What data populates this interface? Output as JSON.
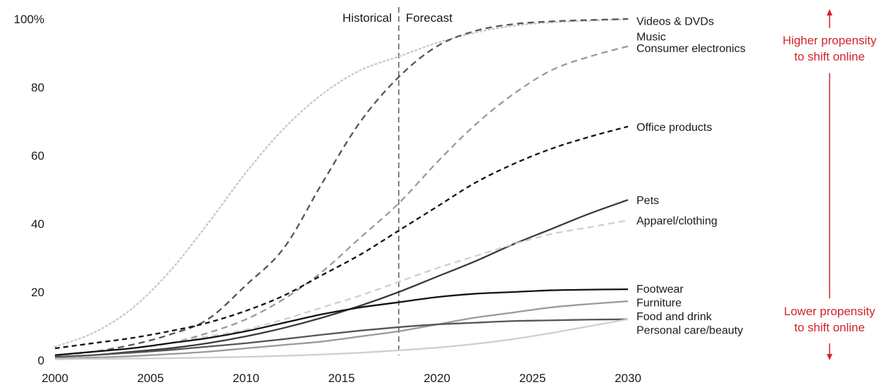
{
  "chart_data": {
    "type": "line",
    "title": "",
    "xlabel": "",
    "ylabel": "",
    "xlim": [
      2000,
      2030
    ],
    "ylim": [
      0,
      100
    ],
    "x_ticks": [
      "2000",
      "2005",
      "2010",
      "2015",
      "2020",
      "2025",
      "2030"
    ],
    "y_ticks": [
      "0",
      "20",
      "40",
      "60",
      "80",
      "100%"
    ],
    "grid": false,
    "divider": {
      "x": 2018,
      "left_label": "Historical",
      "right_label": "Forecast"
    },
    "propensity": {
      "high_line1": "Higher propensity",
      "high_line2": "to shift online",
      "low_line1": "Lower propensity",
      "low_line2": "to shift online",
      "color": "#d2232a"
    },
    "x": [
      2000,
      2002,
      2004,
      2006,
      2008,
      2010,
      2012,
      2014,
      2016,
      2018,
      2020,
      2022,
      2024,
      2026,
      2028,
      2030
    ],
    "series": [
      {
        "name": "Videos & DVDs",
        "color": "#c8c8c8",
        "dash": "dotted",
        "label_y": 99.5,
        "values": [
          4,
          8,
          15,
          26,
          40,
          55,
          68,
          78,
          85,
          89,
          93,
          96,
          98,
          99,
          99.5,
          100
        ]
      },
      {
        "name": "Music",
        "color": "#555555",
        "dash": "long",
        "label_y": 95,
        "values": [
          1.5,
          2.5,
          4.5,
          7.5,
          12,
          22,
          33,
          52,
          70,
          83,
          92,
          96.5,
          98.5,
          99.3,
          99.7,
          100
        ]
      },
      {
        "name": "Consumer electronics",
        "color": "#9a9a9a",
        "dash": "long",
        "label_y": 91.5,
        "values": [
          1.5,
          2.5,
          3.5,
          5,
          8,
          12,
          18,
          26,
          36,
          46,
          58,
          69,
          78,
          85,
          89,
          92
        ]
      },
      {
        "name": "Office products",
        "color": "#111111",
        "dash": "short",
        "label_y": 68.5,
        "values": [
          3.5,
          5,
          6.5,
          8.5,
          11,
          14.5,
          19,
          25,
          31,
          38,
          45,
          52,
          57.5,
          62,
          65.5,
          68.5
        ]
      },
      {
        "name": "Pets",
        "color": "#3a3a3a",
        "dash": "solid",
        "label_y": 47,
        "values": [
          1,
          1.5,
          2.5,
          3.5,
          5,
          7,
          9.5,
          12.5,
          16,
          20,
          24.5,
          29,
          34,
          38.5,
          43,
          47
        ]
      },
      {
        "name": "Apparel/clothing",
        "color": "#cfcfcf",
        "dash": "long",
        "label_y": 41,
        "values": [
          1.5,
          2.5,
          3.5,
          5,
          7,
          9,
          12,
          15.5,
          19,
          23,
          27,
          30.5,
          34,
          37,
          39,
          41
        ]
      },
      {
        "name": "Footwear",
        "color": "#111111",
        "dash": "solid",
        "label_y": 21,
        "values": [
          1.5,
          2.5,
          3.5,
          5,
          6.5,
          8.5,
          11,
          13.5,
          15.5,
          17,
          18.5,
          19.5,
          20,
          20.5,
          20.7,
          20.8
        ]
      },
      {
        "name": "Furniture",
        "color": "#9a9a9a",
        "dash": "solid",
        "label_y": 17,
        "values": [
          0.5,
          0.8,
          1.2,
          1.8,
          2.5,
          3.5,
          4.5,
          5.5,
          7,
          8.5,
          10.5,
          12.5,
          14,
          15.5,
          16.5,
          17.3
        ]
      },
      {
        "name": "Food and drink",
        "color": "#555555",
        "dash": "solid",
        "label_y": 13,
        "values": [
          1,
          1.5,
          2.2,
          3,
          4,
          5,
          6.2,
          7.5,
          8.7,
          9.7,
          10.5,
          11,
          11.5,
          11.7,
          11.9,
          12
        ]
      },
      {
        "name": "Personal care/beauty",
        "color": "#cfcfcf",
        "dash": "solid",
        "label_y": 9,
        "values": [
          0.3,
          0.4,
          0.5,
          0.6,
          0.8,
          1,
          1.3,
          1.7,
          2.2,
          2.9,
          3.7,
          4.8,
          6.2,
          8,
          10,
          12
        ]
      }
    ]
  }
}
